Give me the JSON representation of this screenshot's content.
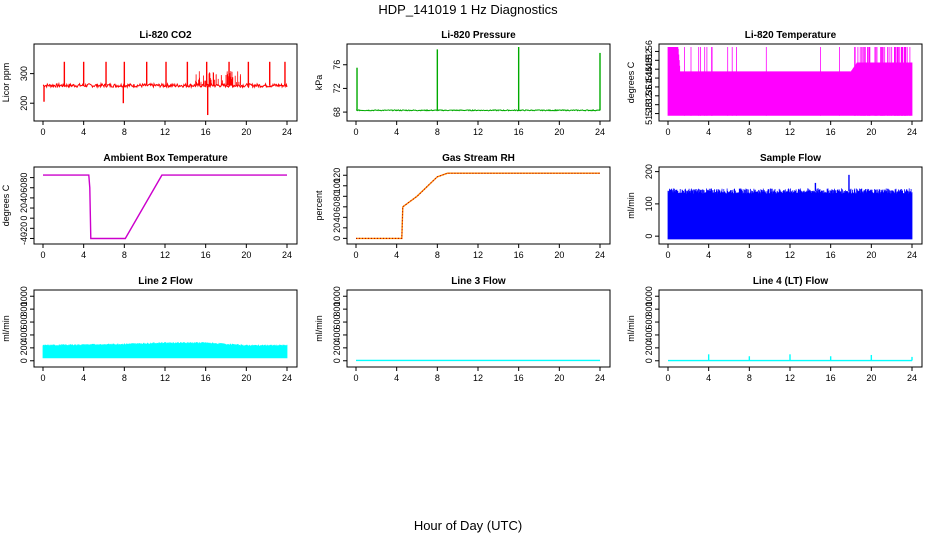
{
  "title": "HDP_141019  1 Hz Diagnostics",
  "xlabel": "Hour of Day (UTC)",
  "chart_data": [
    {
      "type": "line",
      "title": "Li-820 CO2",
      "ylabel": "Licor ppm",
      "xlim": [
        0,
        24
      ],
      "ylim": [
        150,
        390
      ],
      "xticks": [
        0,
        4,
        8,
        12,
        16,
        20,
        24
      ],
      "yticks": [
        200,
        300
      ],
      "color": "#ff0000",
      "baseline": 260,
      "noise": 6,
      "spikes": [
        {
          "x": 2.1,
          "y": 340
        },
        {
          "x": 4.0,
          "y": 340
        },
        {
          "x": 6.2,
          "y": 340
        },
        {
          "x": 8.0,
          "y": 340
        },
        {
          "x": 10.2,
          "y": 340
        },
        {
          "x": 12.1,
          "y": 340
        },
        {
          "x": 14.2,
          "y": 340
        },
        {
          "x": 16.1,
          "y": 340
        },
        {
          "x": 18.3,
          "y": 340
        },
        {
          "x": 20.2,
          "y": 340
        },
        {
          "x": 22.3,
          "y": 340
        },
        {
          "x": 23.8,
          "y": 340
        },
        {
          "x": 0.1,
          "y": 205
        },
        {
          "x": 7.9,
          "y": 200
        },
        {
          "x": 16.2,
          "y": 160
        }
      ]
    },
    {
      "type": "line",
      "title": "Li-820 Pressure",
      "ylabel": "kPa",
      "xlim": [
        0,
        24
      ],
      "ylim": [
        67,
        79
      ],
      "xticks": [
        0,
        4,
        8,
        12,
        16,
        20,
        24
      ],
      "yticks": [
        68,
        72,
        76
      ],
      "color": "#00aa00",
      "baseline": 68.3,
      "noise": 0.08,
      "spikes": [
        {
          "x": 0.1,
          "y": 75.5
        },
        {
          "x": 8.0,
          "y": 78.6
        },
        {
          "x": 16.0,
          "y": 79
        },
        {
          "x": 24.0,
          "y": 78
        }
      ]
    },
    {
      "type": "band",
      "title": "Li-820 Temperature",
      "ylabel": "degrees C",
      "xlim": [
        0,
        24
      ],
      "ylim": [
        51.26,
        51.58
      ],
      "xticks": [
        0,
        4,
        8,
        12,
        16,
        20,
        24
      ],
      "yticks": [
        51.28,
        51.32,
        51.36,
        51.4,
        51.44,
        51.48,
        51.52,
        51.56
      ],
      "color": "#ff00ff",
      "lower": 51.27,
      "upper": [
        [
          0,
          51.58
        ],
        [
          1.0,
          51.58
        ],
        [
          1.2,
          51.47
        ],
        [
          18.0,
          51.47
        ],
        [
          18.6,
          51.51
        ],
        [
          24,
          51.51
        ]
      ],
      "extra_top": 51.58
    },
    {
      "type": "line",
      "title": "Ambient Box Temperature",
      "ylabel": "degrees C",
      "xlim": [
        0,
        24
      ],
      "ylim": [
        -45,
        95
      ],
      "xticks": [
        0,
        4,
        8,
        12,
        16,
        20,
        24
      ],
      "yticks": [
        -40,
        -20,
        0,
        20,
        40,
        60,
        80
      ],
      "color": "#cc00cc",
      "points": [
        [
          0,
          85
        ],
        [
          4.5,
          85
        ],
        [
          4.6,
          60
        ],
        [
          4.7,
          -40
        ],
        [
          8.1,
          -40
        ],
        [
          11.7,
          85
        ],
        [
          24,
          85
        ]
      ]
    },
    {
      "type": "line",
      "title": "Gas Stream RH",
      "ylabel": "percent",
      "xlim": [
        0,
        24
      ],
      "ylim": [
        -5,
        130
      ],
      "xticks": [
        0,
        4,
        8,
        12,
        16,
        20,
        24
      ],
      "yticks": [
        0,
        20,
        40,
        60,
        80,
        100,
        120
      ],
      "color": "#ff8800",
      "dots": "#aa0000",
      "points": [
        [
          0,
          0
        ],
        [
          4.5,
          0
        ],
        [
          4.6,
          60
        ],
        [
          6.0,
          80
        ],
        [
          8.0,
          117
        ],
        [
          9.0,
          124
        ],
        [
          24,
          124
        ]
      ]
    },
    {
      "type": "band",
      "title": "Sample Flow",
      "ylabel": "ml/min",
      "xlim": [
        0,
        24
      ],
      "ylim": [
        -15,
        205
      ],
      "xticks": [
        0,
        4,
        8,
        12,
        16,
        20,
        24
      ],
      "yticks": [
        0,
        100,
        200
      ],
      "color": "#0000ff",
      "lower": -10,
      "upper": [
        [
          0,
          140
        ],
        [
          24,
          140
        ]
      ],
      "noise": 8,
      "spikes": [
        {
          "x": 14.5,
          "y": 165
        },
        {
          "x": 17.8,
          "y": 190
        }
      ]
    },
    {
      "type": "band",
      "title": "Line 2 Flow",
      "ylabel": "ml/min",
      "xlim": [
        0,
        24
      ],
      "ylim": [
        -50,
        1050
      ],
      "xticks": [
        0,
        4,
        8,
        12,
        16,
        20,
        24
      ],
      "yticks": [
        0,
        200,
        400,
        600,
        800,
        1000
      ],
      "color": "#00ffff",
      "lower": 40,
      "upper": [
        [
          0,
          240
        ],
        [
          8,
          260
        ],
        [
          12,
          280
        ],
        [
          16,
          280
        ],
        [
          20,
          240
        ],
        [
          24,
          240
        ]
      ],
      "noise": 10
    },
    {
      "type": "line",
      "title": "Line 3 Flow",
      "ylabel": "ml/min",
      "xlim": [
        0,
        24
      ],
      "ylim": [
        -50,
        1050
      ],
      "xticks": [
        0,
        4,
        8,
        12,
        16,
        20,
        24
      ],
      "yticks": [
        0,
        200,
        400,
        600,
        800,
        1000
      ],
      "color": "#00ffff",
      "points": [
        [
          0,
          5
        ],
        [
          24,
          5
        ]
      ]
    },
    {
      "type": "line",
      "title": "Line 4 (LT) Flow",
      "ylabel": "ml/min",
      "xlim": [
        0,
        24
      ],
      "ylim": [
        -50,
        1050
      ],
      "xticks": [
        0,
        4,
        8,
        12,
        16,
        20,
        24
      ],
      "yticks": [
        0,
        200,
        400,
        600,
        800,
        1000
      ],
      "color": "#00ffff",
      "points": [
        [
          0,
          3
        ],
        [
          24,
          3
        ]
      ],
      "spikes": [
        {
          "x": 4.0,
          "y": 100
        },
        {
          "x": 8.0,
          "y": 70
        },
        {
          "x": 12.0,
          "y": 100
        },
        {
          "x": 16.0,
          "y": 70
        },
        {
          "x": 20.0,
          "y": 90
        },
        {
          "x": 24.0,
          "y": 60
        }
      ]
    }
  ]
}
